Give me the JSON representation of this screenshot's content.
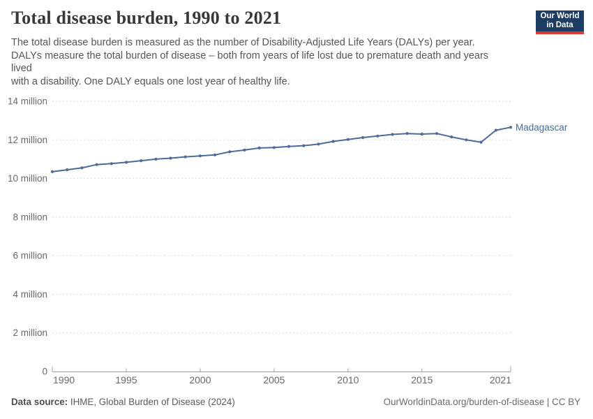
{
  "header": {
    "title": "Total disease burden, 1990 to 2021",
    "subtitle_lines": [
      "The total disease burden is measured as the number of Disability-Adjusted Life Years (DALYs) per year.",
      "DALYs measure the total burden of disease – both from years of life lost due to premature death and years",
      "lived",
      "with a disability. One DALY equals one lost year of healthy life."
    ],
    "logo": {
      "line1": "Our World",
      "line2": "in Data"
    }
  },
  "chart_data": {
    "type": "line",
    "title": "Total disease burden, 1990 to 2021",
    "entity": "Madagascar",
    "unit": "DALYs per year",
    "x": [
      1990,
      1991,
      1992,
      1993,
      1994,
      1995,
      1996,
      1997,
      1998,
      1999,
      2000,
      2001,
      2002,
      2003,
      2004,
      2005,
      2006,
      2007,
      2008,
      2009,
      2010,
      2011,
      2012,
      2013,
      2014,
      2015,
      2016,
      2017,
      2018,
      2019,
      2020,
      2021
    ],
    "values_millions": [
      10.35,
      10.45,
      10.55,
      10.72,
      10.77,
      10.84,
      10.92,
      11.0,
      11.05,
      11.12,
      11.17,
      11.22,
      11.38,
      11.47,
      11.58,
      11.6,
      11.66,
      11.7,
      11.78,
      11.92,
      12.02,
      12.12,
      12.2,
      12.28,
      12.33,
      12.3,
      12.33,
      12.15,
      12.0,
      11.88,
      12.5,
      12.65
    ],
    "xlim": [
      1990,
      2021
    ],
    "ylim_millions": [
      0,
      14
    ],
    "grid": "horizontal-dashed",
    "legend_position": "line-end-label",
    "yticks": [
      {
        "value": 0,
        "label": "0"
      },
      {
        "value": 2,
        "label": "2 million"
      },
      {
        "value": 4,
        "label": "4 million"
      },
      {
        "value": 6,
        "label": "6 million"
      },
      {
        "value": 8,
        "label": "8 million"
      },
      {
        "value": 10,
        "label": "10 million"
      },
      {
        "value": 12,
        "label": "12 million"
      },
      {
        "value": 14,
        "label": "14 million"
      }
    ],
    "xticks": [
      {
        "value": 1990,
        "label": "1990"
      },
      {
        "value": 1995,
        "label": "1995"
      },
      {
        "value": 2000,
        "label": "2000"
      },
      {
        "value": 2005,
        "label": "2005"
      },
      {
        "value": 2010,
        "label": "2010"
      },
      {
        "value": 2015,
        "label": "2015"
      },
      {
        "value": 2021,
        "label": "2021"
      }
    ]
  },
  "footer": {
    "source_label": "Data source:",
    "source_text": " IHME, Global Burden of Disease (2024)",
    "right_text": "OurWorldinData.org/burden-of-disease | CC BY"
  },
  "colors": {
    "line": "#4C6A9C",
    "grid": "#dadada",
    "axis": "#a1a1a1",
    "tick_label": "#686868",
    "logo_bg": "#1d3d63",
    "logo_stripe": "#dc3a2e"
  }
}
